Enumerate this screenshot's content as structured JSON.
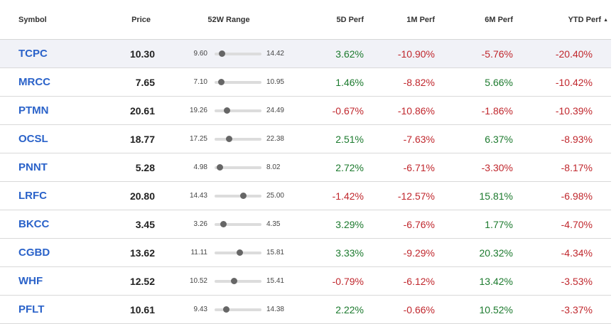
{
  "columns": {
    "symbol": "Symbol",
    "price": "Price",
    "range": "52W Range",
    "perf5d": "5D Perf",
    "perf1m": "1M Perf",
    "perf6m": "6M Perf",
    "ytd": "YTD Perf",
    "sort_icon": "caret-up-icon"
  },
  "colors": {
    "positive": "#1c7a2e",
    "negative": "#c0272d",
    "link": "#2a62c9"
  },
  "rows": [
    {
      "symbol": "TCPC",
      "price": "10.30",
      "low": "9.60",
      "high": "14.42",
      "p5d": "3.62%",
      "p1m": "-10.90%",
      "p6m": "-5.76%",
      "ytd": "-20.40%"
    },
    {
      "symbol": "MRCC",
      "price": "7.65",
      "low": "7.10",
      "high": "10.95",
      "p5d": "1.46%",
      "p1m": "-8.82%",
      "p6m": "5.66%",
      "ytd": "-10.42%"
    },
    {
      "symbol": "PTMN",
      "price": "20.61",
      "low": "19.26",
      "high": "24.49",
      "p5d": "-0.67%",
      "p1m": "-10.86%",
      "p6m": "-1.86%",
      "ytd": "-10.39%"
    },
    {
      "symbol": "OCSL",
      "price": "18.77",
      "low": "17.25",
      "high": "22.38",
      "p5d": "2.51%",
      "p1m": "-7.63%",
      "p6m": "6.37%",
      "ytd": "-8.93%"
    },
    {
      "symbol": "PNNT",
      "price": "5.28",
      "low": "4.98",
      "high": "8.02",
      "p5d": "2.72%",
      "p1m": "-6.71%",
      "p6m": "-3.30%",
      "ytd": "-8.17%"
    },
    {
      "symbol": "LRFC",
      "price": "20.80",
      "low": "14.43",
      "high": "25.00",
      "p5d": "-1.42%",
      "p1m": "-12.57%",
      "p6m": "15.81%",
      "ytd": "-6.98%"
    },
    {
      "symbol": "BKCC",
      "price": "3.45",
      "low": "3.26",
      "high": "4.35",
      "p5d": "3.29%",
      "p1m": "-6.76%",
      "p6m": "1.77%",
      "ytd": "-4.70%"
    },
    {
      "symbol": "CGBD",
      "price": "13.62",
      "low": "11.11",
      "high": "15.81",
      "p5d": "3.33%",
      "p1m": "-9.29%",
      "p6m": "20.32%",
      "ytd": "-4.34%"
    },
    {
      "symbol": "WHF",
      "price": "12.52",
      "low": "10.52",
      "high": "15.41",
      "p5d": "-0.79%",
      "p1m": "-6.12%",
      "p6m": "13.42%",
      "ytd": "-3.53%"
    },
    {
      "symbol": "PFLT",
      "price": "10.61",
      "low": "9.43",
      "high": "14.38",
      "p5d": "2.22%",
      "p1m": "-0.66%",
      "p6m": "10.52%",
      "ytd": "-3.37%"
    }
  ]
}
